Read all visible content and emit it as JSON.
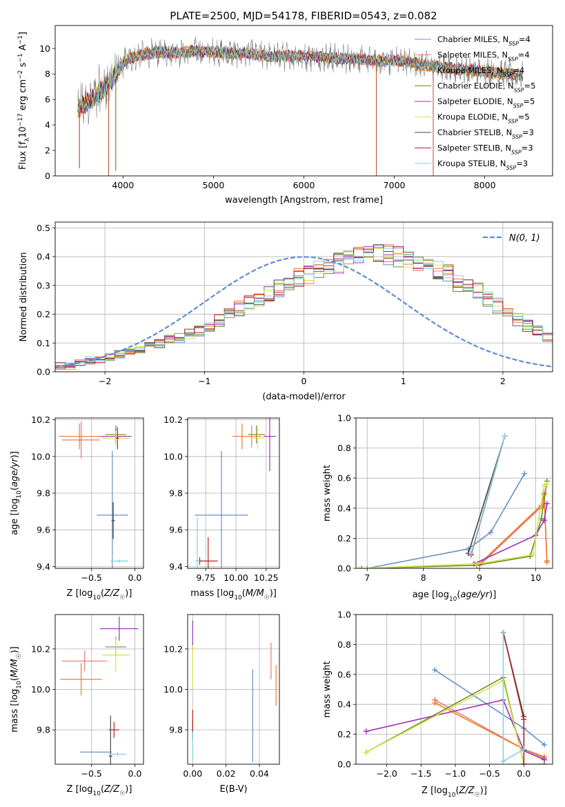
{
  "figure": {
    "title": "PLATE=2500, MJD=54178, FIBERID=0543, z=0.082",
    "colors": {
      "chabrier_miles": "#6a8fc6",
      "salpeter_miles": "#e8766f",
      "kroupa_miles": "#f07a24",
      "chabrier_elodie": "#6b8e23",
      "salpeter_elodie": "#9a32b5",
      "kroupa_elodie": "#d7e34a",
      "chabrier_stelib": "#444444",
      "salpeter_stelib": "#b22222",
      "kroupa_stelib": "#7fd4dc",
      "spectrum_data": "#808080",
      "gaussian": "#5b8bd8",
      "grid": "#b0b0b0"
    }
  },
  "chart_data": [
    {
      "id": "spectrum",
      "type": "line",
      "xlabel": "wavelength [Angstrom, rest frame]",
      "ylabel": "Flux [f_λ 10^-17 erg cm^-2 s^-1 A^-1]",
      "xlim": [
        3250,
        8750
      ],
      "ylim": [
        0,
        11.8
      ],
      "xticks": [
        4000,
        5000,
        6000,
        7000,
        8000
      ],
      "yticks": [
        0,
        2,
        4,
        6,
        8,
        10
      ],
      "grid": false,
      "legend_position": "right",
      "legend": [
        {
          "label": "Chabrier MILES, N",
          "sub": "SSP",
          "suffix": "=4",
          "color_key": "chabrier_miles"
        },
        {
          "label": "Salpeter MILES, N",
          "sub": "SSP",
          "suffix": "=4",
          "color_key": "salpeter_miles"
        },
        {
          "label": "Kroupa MILES, N",
          "sub": "SSP",
          "suffix": "=4",
          "color_key": "kroupa_miles"
        },
        {
          "label": "Chabrier ELODIE, N",
          "sub": "SSP",
          "suffix": "=5",
          "color_key": "chabrier_elodie"
        },
        {
          "label": "Salpeter ELODIE, N",
          "sub": "SSP",
          "suffix": "=5",
          "color_key": "salpeter_elodie"
        },
        {
          "label": "Kroupa ELODIE, N",
          "sub": "SSP",
          "suffix": "=5",
          "color_key": "kroupa_elodie"
        },
        {
          "label": "Chabrier STELIB, N",
          "sub": "SSP",
          "suffix": "=3",
          "color_key": "chabrier_stelib"
        },
        {
          "label": "Salpeter STELIB, N",
          "sub": "SSP",
          "suffix": "=3",
          "color_key": "salpeter_stelib"
        },
        {
          "label": "Kroupa STELIB, N",
          "sub": "SSP",
          "suffix": "=3",
          "color_key": "kroupa_stelib"
        }
      ],
      "continuum": {
        "x": [
          3500,
          3550,
          3650,
          3750,
          3850,
          3950,
          4000,
          4100,
          4200,
          4400,
          4600,
          4800,
          5000,
          5200,
          5400,
          5600,
          5800,
          6000,
          6200,
          6400,
          6600,
          6800,
          7000,
          7200,
          7400
        ],
        "y": [
          5.2,
          5.5,
          6.0,
          6.6,
          7.4,
          8.2,
          8.9,
          9.3,
          9.5,
          9.7,
          9.7,
          9.8,
          9.7,
          9.6,
          9.6,
          9.4,
          9.4,
          9.4,
          9.3,
          9.2,
          9.2,
          9.0,
          9.1,
          8.9,
          8.6
        ]
      },
      "data_range": [
        3500,
        8420
      ],
      "gaps": [
        {
          "x": 3520,
          "to": 0.6
        },
        {
          "x": 3840,
          "to": 0
        },
        {
          "x": 3920,
          "to": 0.4
        },
        {
          "x": 6800,
          "to": 0
        },
        {
          "x": 7430,
          "to": 0
        }
      ]
    },
    {
      "id": "residuals",
      "type": "area",
      "xlabel": "(data-model)/error",
      "ylabel": "Normed distribution",
      "xlim": [
        -2.5,
        2.5
      ],
      "ylim": [
        0,
        0.52
      ],
      "xticks": [
        -2,
        -1,
        0,
        1,
        2
      ],
      "yticks": [
        0.0,
        0.1,
        0.2,
        0.3,
        0.4,
        0.5
      ],
      "xticklabels": [
        "−2",
        "−1",
        "0",
        "1",
        "2"
      ],
      "yticklabels": [
        "0.0",
        "0.1",
        "0.2",
        "0.3",
        "0.4",
        "0.5"
      ],
      "grid": true,
      "legend_position": "top-right",
      "legend_label": "N(0, 1)",
      "bin_width": 0.1,
      "bin_start": -2.5,
      "histogram_values": [
        0.02,
        0.02,
        0.03,
        0.04,
        0.04,
        0.05,
        0.06,
        0.07,
        0.08,
        0.09,
        0.1,
        0.11,
        0.12,
        0.13,
        0.14,
        0.16,
        0.18,
        0.2,
        0.22,
        0.24,
        0.25,
        0.27,
        0.29,
        0.31,
        0.33,
        0.34,
        0.36,
        0.37,
        0.38,
        0.39,
        0.4,
        0.41,
        0.42,
        0.41,
        0.4,
        0.39,
        0.38,
        0.37,
        0.35,
        0.34,
        0.31,
        0.29,
        0.28,
        0.25,
        0.23,
        0.2,
        0.18,
        0.16,
        0.14,
        0.12,
        0.11,
        0.09,
        0.08,
        0.07,
        0.06,
        0.05,
        0.04,
        0.04,
        0.03,
        0.03
      ]
    },
    {
      "id": "age_vs_Z",
      "type": "scatter",
      "xlabel": "Z [log10(Z/Z☉)]",
      "ylabel": "age  [log10(age/yr)]",
      "xlim": [
        -0.92,
        0.1
      ],
      "ylim": [
        9.39,
        10.21
      ],
      "xticks": [
        -0.5,
        0.0
      ],
      "xticklabels": [
        "−0.5",
        "0.0"
      ],
      "yticks": [
        9.4,
        9.6,
        9.8,
        10.0,
        10.2
      ],
      "yticklabels": [
        "9.4",
        "9.6",
        "9.8",
        "10.0",
        "10.2"
      ],
      "grid": true,
      "points": [
        {
          "x": -0.26,
          "y": 9.68,
          "xerr": 0.18,
          "yerr": 0.35,
          "color_key": "chabrier_miles"
        },
        {
          "x": -0.62,
          "y": 10.09,
          "xerr": 0.22,
          "yerr": 0.1,
          "color_key": "salpeter_miles"
        },
        {
          "x": -0.64,
          "y": 10.11,
          "xerr": 0.24,
          "yerr": 0.07,
          "color_key": "kroupa_miles"
        },
        {
          "x": -0.22,
          "y": 10.12,
          "xerr": 0.12,
          "yerr": 0.05,
          "color_key": "chabrier_elodie"
        },
        {
          "x": -0.22,
          "y": 10.11,
          "xerr": 0.18,
          "yerr": 0.04,
          "color_key": "salpeter_elodie"
        },
        {
          "x": -0.22,
          "y": 10.1,
          "xerr": 0.16,
          "yerr": 0.04,
          "color_key": "kroupa_elodie"
        },
        {
          "x": -0.25,
          "y": 9.65,
          "xerr": 0.02,
          "yerr": 0.1,
          "color_key": "chabrier_stelib"
        },
        {
          "x": -0.2,
          "y": 10.1,
          "xerr": 0.02,
          "yerr": 0.06,
          "color_key": "salpeter_stelib"
        },
        {
          "x": -0.18,
          "y": 9.43,
          "xerr": 0.1,
          "yerr": 0.01,
          "color_key": "kroupa_stelib"
        }
      ]
    },
    {
      "id": "age_vs_mass",
      "type": "scatter",
      "xlabel": "mass [log10(M/M☉)]",
      "ylabel": "",
      "xlim": [
        9.6,
        10.36
      ],
      "ylim": [
        9.39,
        10.21
      ],
      "xticks": [
        9.75,
        10.0,
        10.25
      ],
      "xticklabels": [
        "9.75",
        "10.00",
        "10.25"
      ],
      "yticks": [
        9.4,
        9.6,
        9.8,
        10.0,
        10.2
      ],
      "yticklabels": [
        "9.4",
        "9.6",
        "9.8",
        "10.0",
        "10.2"
      ],
      "grid": true,
      "points": [
        {
          "x": 9.88,
          "y": 9.68,
          "xerr": 0.22,
          "yerr": 0.35,
          "color_key": "chabrier_miles"
        },
        {
          "x": 10.13,
          "y": 10.11,
          "xerr": 0.08,
          "yerr": 0.06,
          "color_key": "salpeter_miles"
        },
        {
          "x": 10.05,
          "y": 10.11,
          "xerr": 0.08,
          "yerr": 0.07,
          "color_key": "kroupa_miles"
        },
        {
          "x": 10.17,
          "y": 10.12,
          "xerr": 0.07,
          "yerr": 0.05,
          "color_key": "chabrier_elodie"
        },
        {
          "x": 10.28,
          "y": 10.11,
          "xerr": 0.05,
          "yerr": 0.19,
          "color_key": "salpeter_elodie"
        },
        {
          "x": 10.18,
          "y": 10.1,
          "xerr": 0.06,
          "yerr": 0.06,
          "color_key": "kroupa_elodie"
        },
        {
          "x": 9.7,
          "y": 9.43,
          "xerr": 0.02,
          "yerr": 0.02,
          "color_key": "chabrier_stelib"
        },
        {
          "x": 9.77,
          "y": 9.43,
          "xerr": 0.08,
          "yerr": 0.13,
          "color_key": "salpeter_stelib"
        },
        {
          "x": 9.68,
          "y": 9.43,
          "xerr": 0.02,
          "yerr": 0.24,
          "color_key": "kroupa_stelib"
        }
      ]
    },
    {
      "id": "mass_weight_vs_age",
      "type": "line",
      "xlabel": "age  [log10(age/yr)]",
      "ylabel": "mass weight",
      "xlim": [
        6.8,
        10.3
      ],
      "ylim": [
        0,
        1.0
      ],
      "xticks": [
        7,
        8,
        9,
        10
      ],
      "yticks": [
        0.0,
        0.2,
        0.4,
        0.6,
        0.8,
        1.0
      ],
      "yticklabels": [
        "0.0",
        "0.2",
        "0.4",
        "0.6",
        "0.8",
        "1.0"
      ],
      "grid": true,
      "series": [
        {
          "color_key": "chabrier_miles",
          "x": [
            7.0,
            8.8,
            9.2,
            9.8
          ],
          "y": [
            0.0,
            0.13,
            0.24,
            0.63
          ]
        },
        {
          "color_key": "salpeter_miles",
          "x": [
            9.0,
            10.1,
            10.15,
            10.2
          ],
          "y": [
            0.02,
            0.41,
            0.5,
            0.04
          ]
        },
        {
          "color_key": "kroupa_miles",
          "x": [
            9.0,
            10.1,
            10.15,
            10.2
          ],
          "y": [
            0.03,
            0.42,
            0.49,
            0.05
          ]
        },
        {
          "color_key": "chabrier_elodie",
          "x": [
            6.9,
            8.95,
            9.9,
            10.1,
            10.2
          ],
          "y": [
            0.0,
            0.02,
            0.08,
            0.33,
            0.58
          ]
        },
        {
          "color_key": "salpeter_elodie",
          "x": [
            8.9,
            10.0,
            10.15,
            10.2
          ],
          "y": [
            0.03,
            0.22,
            0.32,
            0.43
          ]
        },
        {
          "color_key": "kroupa_elodie",
          "x": [
            6.85,
            8.95,
            9.95,
            10.15,
            10.2
          ],
          "y": [
            0.0,
            0.03,
            0.09,
            0.55,
            0.56
          ]
        },
        {
          "color_key": "chabrier_stelib",
          "x": [
            8.8,
            9.45
          ],
          "y": [
            0.1,
            0.88
          ]
        },
        {
          "color_key": "salpeter_stelib",
          "x": [
            8.85,
            9.45
          ],
          "y": [
            0.09,
            0.88
          ]
        },
        {
          "color_key": "kroupa_stelib",
          "x": [
            8.85,
            9.45
          ],
          "y": [
            0.1,
            0.88
          ]
        }
      ]
    },
    {
      "id": "mass_vs_Z",
      "type": "scatter",
      "xlabel": "Z [log10(Z/Z☉)]",
      "ylabel": "mass [log10(M/M☉)]",
      "xlim": [
        -0.92,
        0.1
      ],
      "ylim": [
        9.63,
        10.37
      ],
      "xticks": [
        -0.5,
        0.0
      ],
      "xticklabels": [
        "−0.5",
        "0.0"
      ],
      "yticks": [
        9.8,
        10.0,
        10.2
      ],
      "yticklabels": [
        "9.8",
        "10.0",
        "10.2"
      ],
      "grid": true,
      "points": [
        {
          "x": -0.45,
          "y": 9.69,
          "xerr": 0.18,
          "yerr": 0.0,
          "color_key": "chabrier_miles"
        },
        {
          "x": -0.58,
          "y": 10.14,
          "xerr": 0.26,
          "yerr": 0.05,
          "color_key": "salpeter_miles"
        },
        {
          "x": -0.62,
          "y": 10.05,
          "xerr": 0.24,
          "yerr": 0.08,
          "color_key": "kroupa_miles"
        },
        {
          "x": -0.22,
          "y": 10.21,
          "xerr": 0.12,
          "yerr": 0.05,
          "color_key": "chabrier_elodie"
        },
        {
          "x": -0.18,
          "y": 10.3,
          "xerr": 0.22,
          "yerr": 0.06,
          "color_key": "salpeter_elodie"
        },
        {
          "x": -0.22,
          "y": 10.17,
          "xerr": 0.16,
          "yerr": 0.08,
          "color_key": "kroupa_elodie"
        },
        {
          "x": -0.28,
          "y": 9.67,
          "xerr": 0.02,
          "yerr": 0.2,
          "color_key": "chabrier_stelib"
        },
        {
          "x": -0.24,
          "y": 9.8,
          "xerr": 0.06,
          "yerr": 0.04,
          "color_key": "salpeter_stelib"
        },
        {
          "x": -0.2,
          "y": 9.68,
          "xerr": 0.1,
          "yerr": 0.01,
          "color_key": "kroupa_stelib"
        }
      ]
    },
    {
      "id": "mass_vs_ebv",
      "type": "scatter",
      "xlabel": "E(B-V)",
      "ylabel": "",
      "xlim": [
        -0.003,
        0.052
      ],
      "ylim": [
        9.63,
        10.37
      ],
      "xticks": [
        0.0,
        0.02,
        0.04
      ],
      "xticklabels": [
        "0.00",
        "0.02",
        "0.04"
      ],
      "yticks": [
        9.8,
        10.0,
        10.2
      ],
      "yticklabels": [
        "9.8",
        "10.0",
        "10.2"
      ],
      "grid": true,
      "points": [
        {
          "x": 0.036,
          "y": 9.87,
          "xerr": 0.0,
          "yerr": 0.23,
          "color_key": "chabrier_miles"
        },
        {
          "x": 0.047,
          "y": 10.14,
          "xerr": 0.0,
          "yerr": 0.09,
          "color_key": "salpeter_miles"
        },
        {
          "x": 0.05,
          "y": 10.02,
          "xerr": 0.0,
          "yerr": 0.1,
          "color_key": "kroupa_miles"
        },
        {
          "x": 0.0,
          "y": 10.21,
          "xerr": 0.0,
          "yerr": 0.02,
          "color_key": "chabrier_elodie"
        },
        {
          "x": 0.0,
          "y": 10.28,
          "xerr": 0.0,
          "yerr": 0.06,
          "color_key": "salpeter_elodie"
        },
        {
          "x": 0.0,
          "y": 10.11,
          "xerr": 0.0,
          "yerr": 0.11,
          "color_key": "kroupa_elodie"
        },
        {
          "x": 0.0,
          "y": 9.8,
          "xerr": 0.0,
          "yerr": 0.05,
          "color_key": "chabrier_stelib"
        },
        {
          "x": 0.0,
          "y": 9.85,
          "xerr": 0.0,
          "yerr": 0.05,
          "color_key": "salpeter_stelib"
        },
        {
          "x": 0.0,
          "y": 9.72,
          "xerr": 0.0,
          "yerr": 0.07,
          "color_key": "kroupa_stelib"
        }
      ]
    },
    {
      "id": "mass_weight_vs_Z",
      "type": "line",
      "xlabel": "Z [log10(Z/Z☉)]",
      "ylabel": "mass weight",
      "xlim": [
        -2.45,
        0.42
      ],
      "ylim": [
        0,
        1.0
      ],
      "xticks": [
        -2.0,
        -1.5,
        -1.0,
        -0.5,
        0.0
      ],
      "xticklabels": [
        "−2.0",
        "−1.5",
        "−1.0",
        "−0.5",
        "0.0"
      ],
      "yticks": [
        0.0,
        0.2,
        0.4,
        0.6,
        0.8,
        1.0
      ],
      "yticklabels": [
        "0.0",
        "0.2",
        "0.4",
        "0.6",
        "0.8",
        "1.0"
      ],
      "grid": true,
      "series": [
        {
          "color_key": "chabrier_miles",
          "x": [
            -1.3,
            0.0,
            0.3
          ],
          "y": [
            0.63,
            0.24,
            0.13
          ]
        },
        {
          "color_key": "salpeter_miles",
          "x": [
            -1.3,
            0.0,
            0.3
          ],
          "y": [
            0.43,
            0.1,
            0.04
          ]
        },
        {
          "color_key": "kroupa_miles",
          "x": [
            -1.3,
            0.0,
            0.3
          ],
          "y": [
            0.41,
            0.1,
            0.05
          ]
        },
        {
          "color_key": "chabrier_elodie",
          "x": [
            -2.3,
            -0.3,
            0.0,
            0.3
          ],
          "y": [
            0.08,
            0.58,
            0.0,
            0.0
          ]
        },
        {
          "color_key": "salpeter_elodie",
          "x": [
            -2.3,
            -0.3,
            0.0,
            0.3
          ],
          "y": [
            0.22,
            0.43,
            0.09,
            0.03
          ]
        },
        {
          "color_key": "kroupa_elodie",
          "x": [
            -2.3,
            -0.3,
            0.0
          ],
          "y": [
            0.08,
            0.56,
            0.0
          ]
        },
        {
          "color_key": "chabrier_stelib",
          "x": [
            -0.3,
            0.0,
            0.0
          ],
          "y": [
            0.88,
            0.32,
            0.0
          ]
        },
        {
          "color_key": "salpeter_stelib",
          "x": [
            -0.3,
            0.0,
            0.0
          ],
          "y": [
            0.88,
            0.3,
            0.0
          ]
        },
        {
          "color_key": "kroupa_stelib",
          "x": [
            -0.3,
            -0.3,
            0.0
          ],
          "y": [
            0.88,
            0.02,
            0.1
          ]
        }
      ]
    }
  ]
}
